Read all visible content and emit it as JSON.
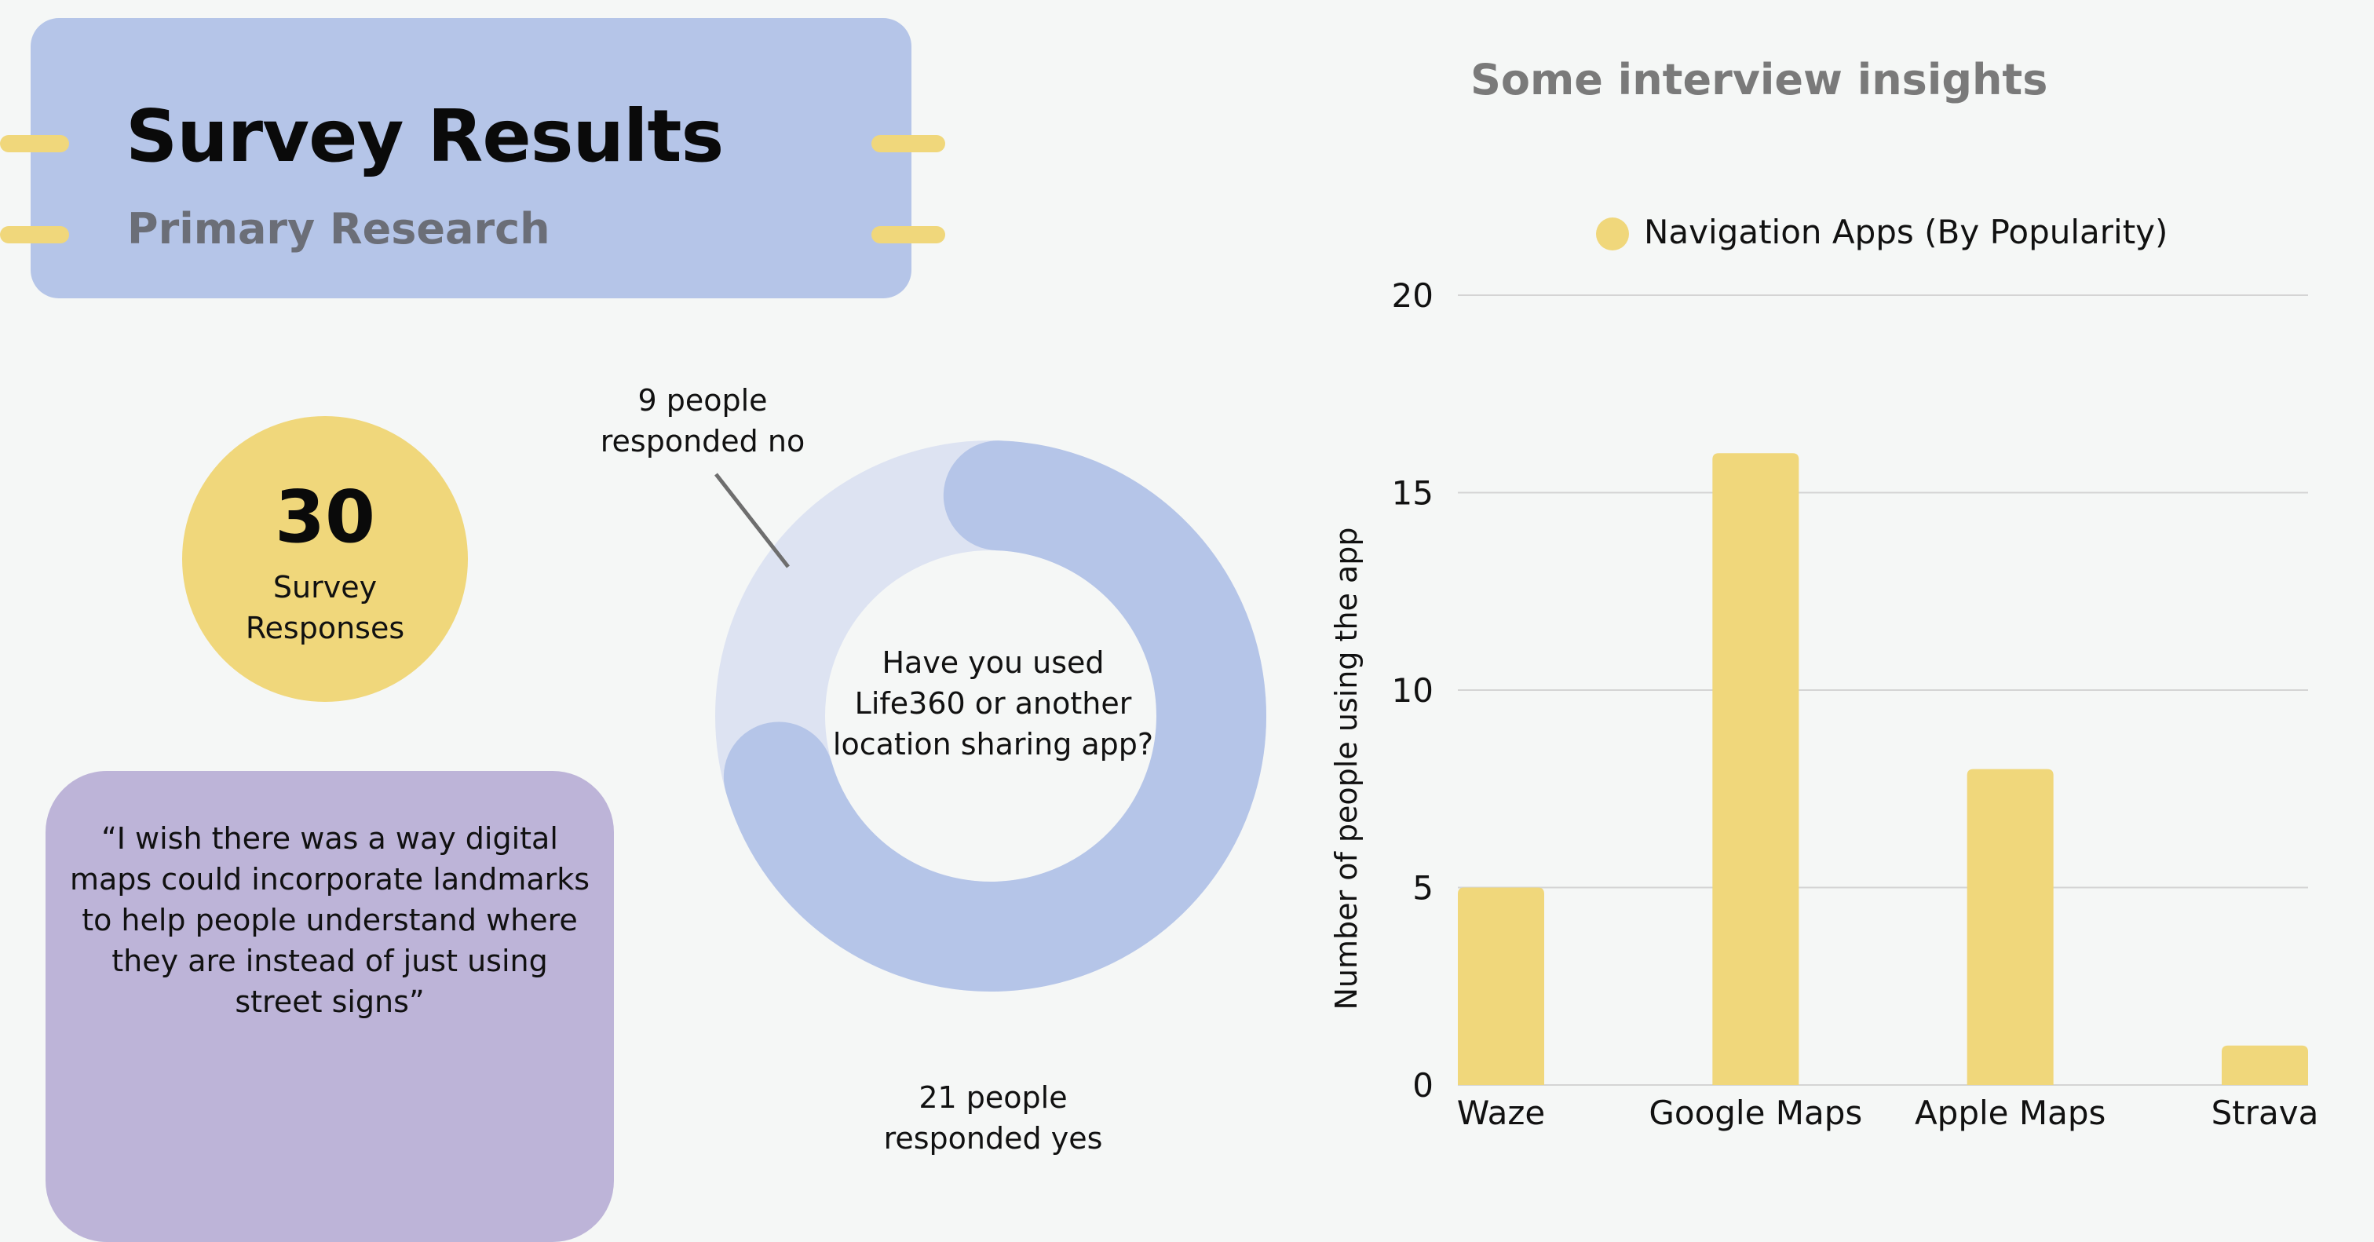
{
  "header": {
    "title": "Survey Results",
    "subtitle": "Primary Research"
  },
  "survey_count": {
    "number": "30",
    "label_line1": "Survey",
    "label_line2": "Responses"
  },
  "quote": {
    "text": "“I wish there was a way digital maps could incorporate landmarks to help people understand where they are instead of just using street signs”"
  },
  "donut": {
    "question": "Have you used Life360 or another location sharing app?",
    "no_label_line1": "9 people",
    "no_label_line2": "responded no",
    "yes_label_line1": "21 people",
    "yes_label_line2": "responded yes"
  },
  "colors": {
    "header_bg": "#b5c5e8",
    "accent_yellow": "#f0d77b",
    "quote_bg": "#bdb4d8",
    "donut_yes": "#b5c5e8",
    "donut_no": "#dde3f2",
    "leader_line": "#6e6e6e",
    "grid": "#d4d4d4"
  },
  "chart_title": "Some interview insights",
  "chart_data": [
    {
      "type": "pie",
      "title": "Have you used Life360 or another location sharing app?",
      "categories": [
        "responded yes",
        "responded no"
      ],
      "values": [
        21,
        9
      ]
    },
    {
      "type": "bar",
      "categories": [
        "Waze",
        "Google Maps",
        "Apple Maps",
        "Strava"
      ],
      "values": [
        5,
        16,
        8,
        1
      ],
      "series": [
        {
          "name": "Navigation Apps (By Popularity)",
          "values": [
            5,
            16,
            8,
            1
          ]
        }
      ],
      "ylabel": "Number of people using the app",
      "xlabel": "",
      "ylim": [
        0,
        20
      ],
      "yticks": [
        0,
        5,
        10,
        15,
        20
      ],
      "legend_position": "top",
      "grid": true
    }
  ]
}
